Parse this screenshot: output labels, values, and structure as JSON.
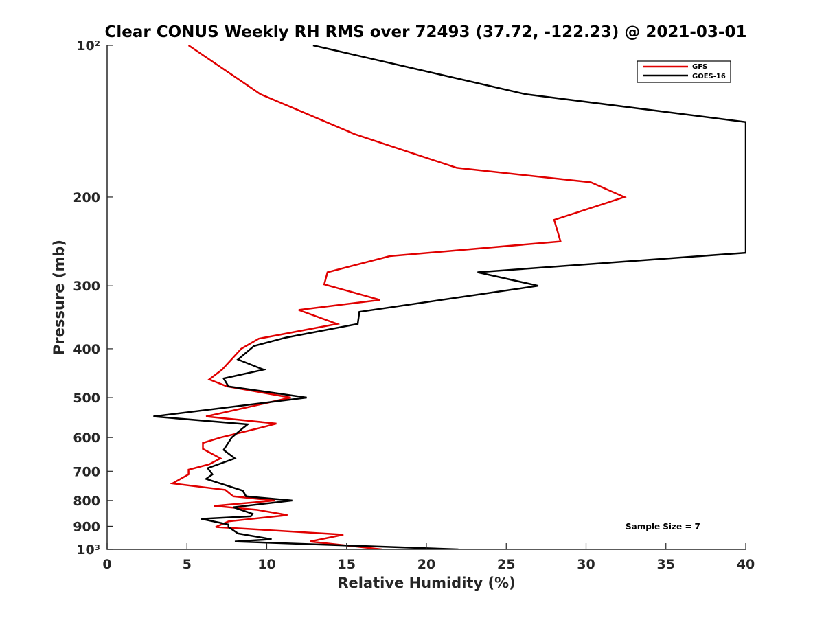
{
  "chart_data": {
    "type": "line",
    "title": "Clear CONUS Weekly RH RMS over 72493 (37.72, -122.23) @ 2021-03-01",
    "xlabel": "Relative Humidity (%)",
    "ylabel": "Pressure (mb)",
    "xlim": [
      0,
      40
    ],
    "ylim": [
      100,
      1000
    ],
    "y_scale": "log",
    "y_reversed": true,
    "x_ticks": [
      0,
      5,
      10,
      15,
      20,
      25,
      30,
      35,
      40
    ],
    "y_ticks": [
      100,
      200,
      300,
      400,
      500,
      600,
      700,
      800,
      900,
      1000
    ],
    "y_tick_labels": [
      "10²",
      "200",
      "300",
      "400",
      "500",
      "600",
      "700",
      "800",
      "900",
      "10³"
    ],
    "grid": false,
    "legend": "top-right",
    "annotation": "Sample Size = 7",
    "series": [
      {
        "name": "GFS",
        "color": "#e00000",
        "points": [
          [
            5.1,
            100
          ],
          [
            9.6,
            125
          ],
          [
            15.5,
            150
          ],
          [
            21.9,
            175
          ],
          [
            30.3,
            187
          ],
          [
            32.4,
            200
          ],
          [
            28.0,
            222
          ],
          [
            28.4,
            245
          ],
          [
            17.7,
            262
          ],
          [
            13.8,
            282
          ],
          [
            13.6,
            298
          ],
          [
            17.1,
            320
          ],
          [
            12.0,
            335
          ],
          [
            14.4,
            357
          ],
          [
            9.5,
            382
          ],
          [
            8.4,
            400
          ],
          [
            7.2,
            440
          ],
          [
            6.4,
            460
          ],
          [
            7.5,
            475
          ],
          [
            11.5,
            500
          ],
          [
            6.2,
            545
          ],
          [
            10.6,
            563
          ],
          [
            9.5,
            575
          ],
          [
            7.1,
            600
          ],
          [
            6.0,
            615
          ],
          [
            6.0,
            632
          ],
          [
            7.1,
            660
          ],
          [
            6.4,
            678
          ],
          [
            5.1,
            695
          ],
          [
            5.1,
            710
          ],
          [
            4.1,
            740
          ],
          [
            7.4,
            762
          ],
          [
            7.9,
            785
          ],
          [
            10.5,
            800
          ],
          [
            6.7,
            820
          ],
          [
            9.4,
            835
          ],
          [
            11.3,
            855
          ],
          [
            7.6,
            880
          ],
          [
            6.8,
            903
          ],
          [
            14.8,
            935
          ],
          [
            12.7,
            965
          ],
          [
            17.2,
            1000
          ]
        ]
      },
      {
        "name": "GOES-16",
        "color": "#000000",
        "points": [
          [
            12.9,
            100
          ],
          [
            26.2,
            125
          ],
          [
            40.0,
            142
          ],
          [
            40.0,
            258
          ],
          [
            23.2,
            282
          ],
          [
            27.0,
            300
          ],
          [
            15.8,
            338
          ],
          [
            15.7,
            357
          ],
          [
            11.2,
            380
          ],
          [
            9.2,
            395
          ],
          [
            8.2,
            420
          ],
          [
            9.8,
            440
          ],
          [
            7.3,
            458
          ],
          [
            7.6,
            475
          ],
          [
            12.5,
            500
          ],
          [
            2.9,
            545
          ],
          [
            8.8,
            565
          ],
          [
            8.5,
            575
          ],
          [
            7.8,
            600
          ],
          [
            7.3,
            635
          ],
          [
            8.0,
            660
          ],
          [
            6.3,
            690
          ],
          [
            6.6,
            710
          ],
          [
            6.2,
            725
          ],
          [
            8.5,
            765
          ],
          [
            8.7,
            785
          ],
          [
            11.6,
            800
          ],
          [
            7.9,
            825
          ],
          [
            9.1,
            850
          ],
          [
            9.0,
            860
          ],
          [
            5.9,
            870
          ],
          [
            7.6,
            893
          ],
          [
            7.6,
            903
          ],
          [
            8.2,
            930
          ],
          [
            10.3,
            955
          ],
          [
            8.0,
            965
          ],
          [
            22.0,
            1000
          ]
        ]
      }
    ]
  }
}
